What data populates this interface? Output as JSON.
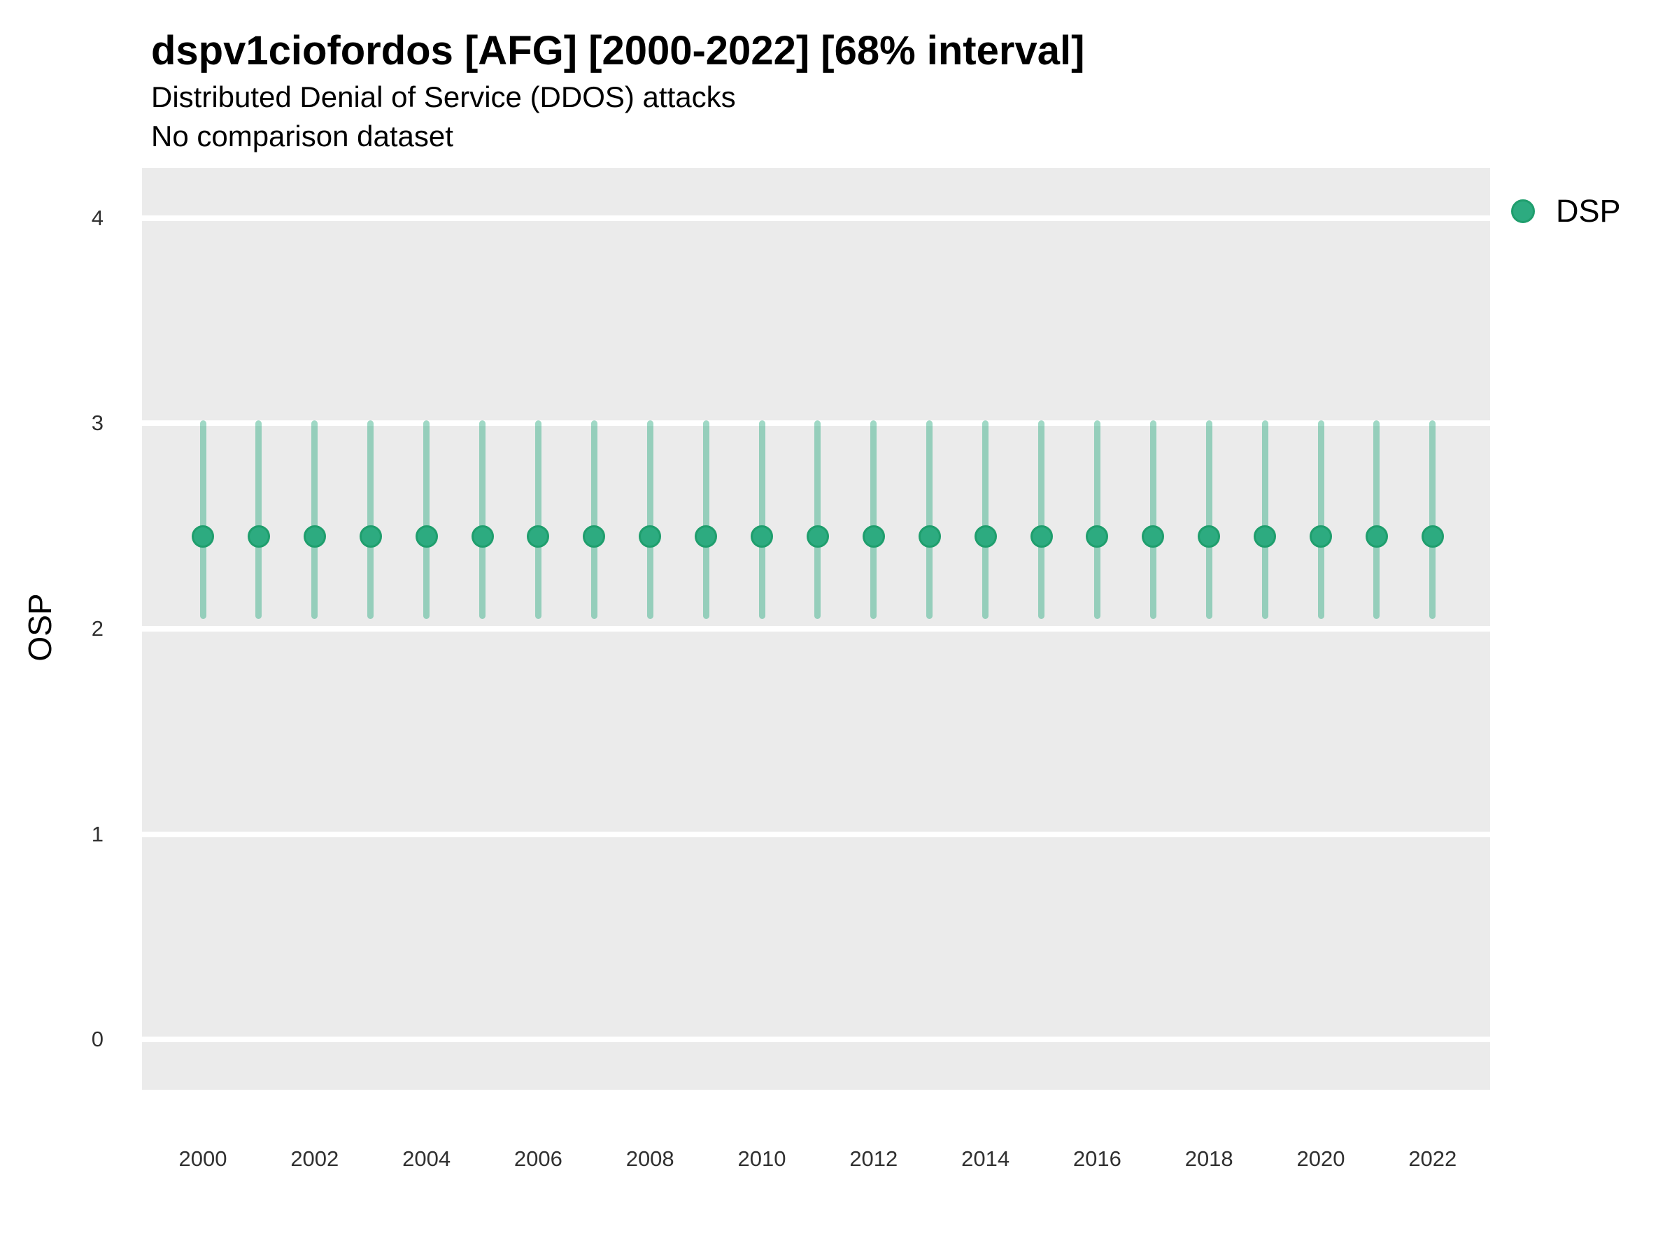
{
  "header": {
    "title": "dspv1ciofordos [AFG] [2000-2022] [68% interval]",
    "subtitle": "Distributed Denial of Service (DDOS) attacks",
    "note": "No comparison dataset"
  },
  "legend": {
    "position": "top-right",
    "items": [
      {
        "label": "DSP",
        "marker": "circle-icon",
        "color": "#2dab80"
      }
    ]
  },
  "chart_data": {
    "type": "scatter",
    "title": "dspv1ciofordos [AFG] [2000-2022] [68% interval]",
    "subtitle": "Distributed Denial of Service (DDOS) attacks",
    "note": "No comparison dataset",
    "interval": "68%",
    "xlabel": "",
    "ylabel": "OSP",
    "x": [
      2000,
      2001,
      2002,
      2003,
      2004,
      2005,
      2006,
      2007,
      2008,
      2009,
      2010,
      2011,
      2012,
      2013,
      2014,
      2015,
      2016,
      2017,
      2018,
      2019,
      2020,
      2021,
      2022
    ],
    "series": [
      {
        "name": "DSP",
        "values": [
          2.45,
          2.45,
          2.45,
          2.45,
          2.45,
          2.45,
          2.45,
          2.45,
          2.45,
          2.45,
          2.45,
          2.45,
          2.45,
          2.45,
          2.45,
          2.45,
          2.45,
          2.45,
          2.45,
          2.45,
          2.45,
          2.45,
          2.45
        ],
        "lower": [
          2.06,
          2.06,
          2.06,
          2.06,
          2.06,
          2.06,
          2.06,
          2.06,
          2.06,
          2.06,
          2.06,
          2.06,
          2.06,
          2.06,
          2.06,
          2.06,
          2.06,
          2.06,
          2.06,
          2.06,
          2.06,
          2.06,
          2.06
        ],
        "upper": [
          3.0,
          3.0,
          3.0,
          3.0,
          3.0,
          3.0,
          3.0,
          3.0,
          3.0,
          3.0,
          3.0,
          3.0,
          3.0,
          3.0,
          3.0,
          3.0,
          3.0,
          3.0,
          3.0,
          3.0,
          3.0,
          3.0,
          3.0
        ]
      }
    ],
    "xticks": [
      2000,
      2002,
      2004,
      2006,
      2008,
      2010,
      2012,
      2014,
      2016,
      2018,
      2020,
      2022
    ],
    "yticks": [
      0,
      1,
      2,
      3,
      4
    ],
    "ylim": [
      -0.245,
      4.245
    ],
    "grid": {
      "horizontal_major": true,
      "vertical": false,
      "minor": false
    },
    "legend_position": "top-right"
  },
  "colors": {
    "point": "#2dab80",
    "point_border": "#1f9e6d",
    "interval_line": "rgba(45,171,128,0.45)",
    "panel_bg": "#ebebeb",
    "gridline": "#ffffff",
    "tick_label": "#303030",
    "text": "#000000",
    "background": "#ffffff"
  }
}
